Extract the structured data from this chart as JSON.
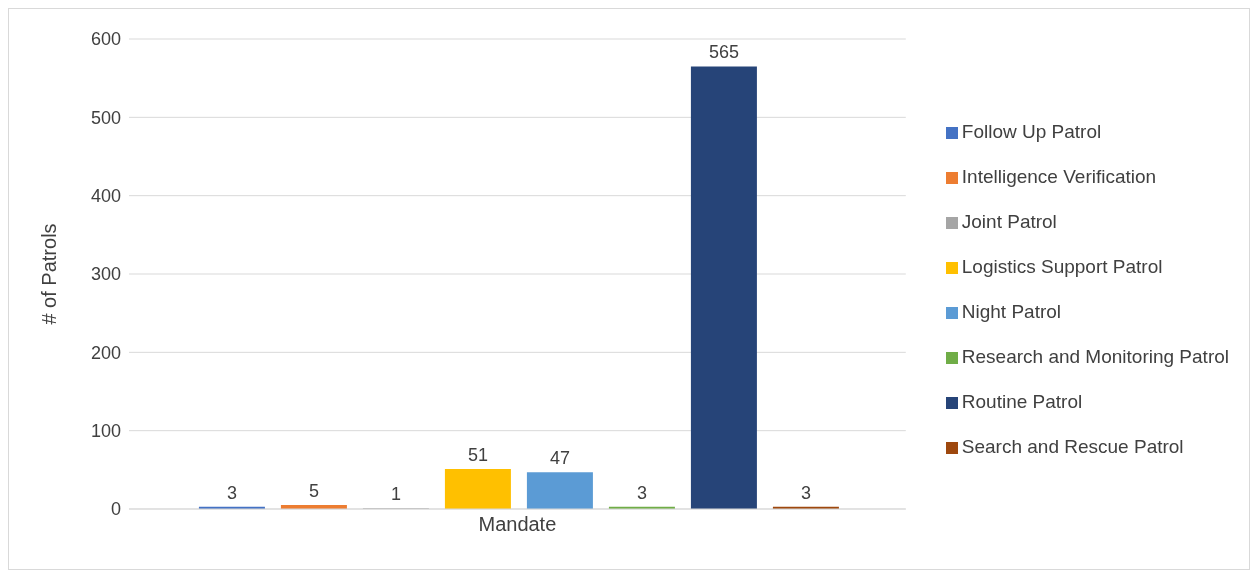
{
  "chart_data": {
    "type": "bar",
    "ylabel": "# of Patrols",
    "categories": [
      "Mandate"
    ],
    "series": [
      {
        "name": "Follow Up Patrol",
        "color": "#4472c4",
        "values": [
          3
        ]
      },
      {
        "name": "Intelligence Verification",
        "color": "#ed7d31",
        "values": [
          5
        ]
      },
      {
        "name": "Joint Patrol",
        "color": "#a5a5a5",
        "values": [
          1
        ]
      },
      {
        "name": "Logistics Support Patrol",
        "color": "#ffc000",
        "values": [
          51
        ]
      },
      {
        "name": "Night Patrol",
        "color": "#5b9bd5",
        "values": [
          47
        ]
      },
      {
        "name": "Research and Monitoring Patrol",
        "color": "#70ad47",
        "values": [
          3
        ]
      },
      {
        "name": "Routine Patrol",
        "color": "#264478",
        "values": [
          565
        ]
      },
      {
        "name": "Search and Rescue Patrol",
        "color": "#9e480e",
        "values": [
          3
        ]
      }
    ],
    "ylim": [
      0,
      600
    ],
    "yticks": [
      0,
      100,
      200,
      300,
      400,
      500,
      600
    ],
    "grid": "y",
    "legend": "right",
    "data_labels": true
  }
}
